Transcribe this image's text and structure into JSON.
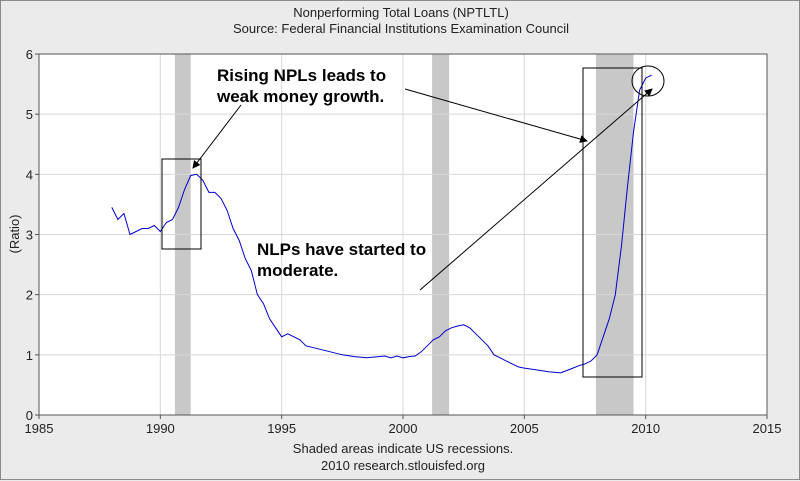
{
  "chart_data": {
    "type": "line",
    "title": "Nonperforming Total Loans (NPTLTL)",
    "subtitle": "Source: Federal Financial Institutions Examination Council",
    "ylabel": "(Ratio)",
    "xlabel": "",
    "xlim": [
      1985,
      2015
    ],
    "ylim": [
      0,
      6
    ],
    "x_ticks": [
      1985,
      1990,
      1995,
      2000,
      2005,
      2010,
      2015
    ],
    "y_ticks": [
      0,
      1,
      2,
      3,
      4,
      5,
      6
    ],
    "grid": true,
    "series_color": "#0000cc",
    "recession_color": "#c8c8c8",
    "recessions": [
      {
        "start": 1990.6,
        "end": 1991.25
      },
      {
        "start": 2001.2,
        "end": 2001.9
      },
      {
        "start": 2007.95,
        "end": 2009.5
      }
    ],
    "x": [
      1988.0,
      1988.25,
      1988.5,
      1988.75,
      1989.0,
      1989.25,
      1989.5,
      1989.75,
      1990.0,
      1990.25,
      1990.5,
      1990.75,
      1991.0,
      1991.25,
      1991.5,
      1991.75,
      1992.0,
      1992.25,
      1992.5,
      1992.75,
      1993.0,
      1993.25,
      1993.5,
      1993.75,
      1994.0,
      1994.25,
      1994.5,
      1994.75,
      1995.0,
      1995.25,
      1995.5,
      1995.75,
      1996.0,
      1996.5,
      1997.0,
      1997.5,
      1998.0,
      1998.5,
      1999.0,
      1999.25,
      1999.5,
      1999.75,
      2000.0,
      2000.25,
      2000.5,
      2000.75,
      2001.0,
      2001.25,
      2001.5,
      2001.75,
      2002.0,
      2002.25,
      2002.5,
      2002.75,
      2003.0,
      2003.25,
      2003.5,
      2003.75,
      2004.0,
      2004.25,
      2004.5,
      2004.75,
      2005.0,
      2005.5,
      2006.0,
      2006.5,
      2007.0,
      2007.25,
      2007.5,
      2007.75,
      2008.0,
      2008.25,
      2008.5,
      2008.75,
      2009.0,
      2009.25,
      2009.5,
      2009.75,
      2010.0,
      2010.25
    ],
    "y": [
      3.45,
      3.25,
      3.35,
      3.0,
      3.05,
      3.1,
      3.1,
      3.15,
      3.05,
      3.2,
      3.25,
      3.45,
      3.75,
      3.98,
      4.0,
      3.9,
      3.7,
      3.7,
      3.6,
      3.4,
      3.1,
      2.9,
      2.6,
      2.4,
      2.0,
      1.85,
      1.6,
      1.45,
      1.3,
      1.35,
      1.3,
      1.25,
      1.15,
      1.1,
      1.05,
      1.0,
      0.97,
      0.95,
      0.97,
      0.98,
      0.95,
      0.98,
      0.95,
      0.97,
      0.98,
      1.05,
      1.15,
      1.25,
      1.3,
      1.4,
      1.45,
      1.48,
      1.5,
      1.45,
      1.35,
      1.25,
      1.15,
      1.0,
      0.95,
      0.9,
      0.85,
      0.8,
      0.78,
      0.75,
      0.72,
      0.7,
      0.78,
      0.82,
      0.85,
      0.9,
      1.0,
      1.3,
      1.6,
      2.0,
      2.8,
      3.8,
      4.7,
      5.4,
      5.6,
      5.65
    ],
    "annotations": {
      "top_line1": "Rising NPLs leads to",
      "top_line2": "weak money growth.",
      "mid_line1": "NLPs have started to",
      "mid_line2": "moderate."
    },
    "footer_line1": "Shaded areas indicate US recessions.",
    "footer_line2": "2010 research.stlouisfed.org"
  }
}
